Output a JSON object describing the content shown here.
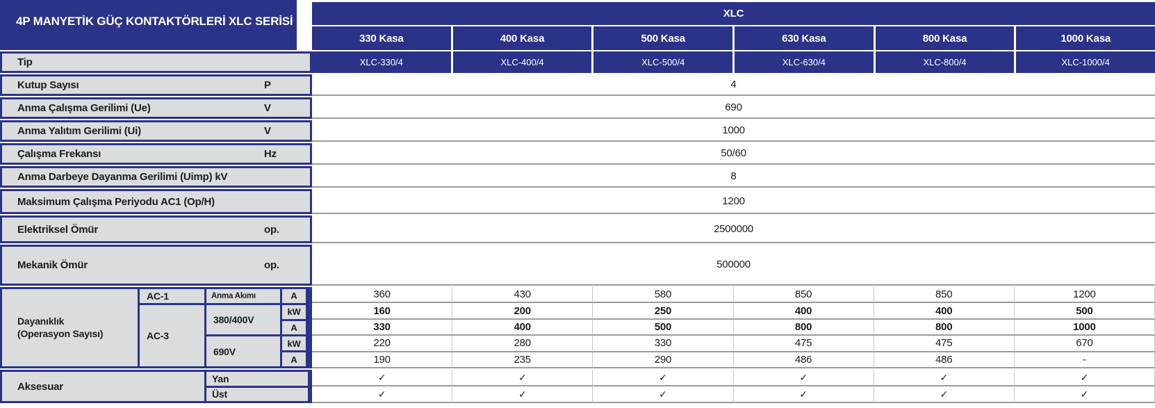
{
  "colors": {
    "brand_blue": "#2b3388",
    "label_gray": "#dbdcde",
    "row_line_gray": "#9b9b9b",
    "column_line_gray": "#c6c6c6",
    "text_dark": "#1c1c1f"
  },
  "title": "4P MANYETİK GÜÇ KONTAKTÖRLERİ XLC SERİSİ",
  "header": {
    "group": "XLC",
    "cases": [
      "330 Kasa",
      "400 Kasa",
      "500 Kasa",
      "630 Kasa",
      "800 Kasa",
      "1000 Kasa"
    ]
  },
  "tip": {
    "label": "Tip",
    "models": [
      "XLC-330/4",
      "XLC-400/4",
      "XLC-500/4",
      "XLC-630/4",
      "XLC-800/4",
      "XLC-1000/4"
    ]
  },
  "specs": [
    {
      "label": "Kutup Sayısı",
      "unit": "P",
      "value": "4"
    },
    {
      "label": "Anma Çalışma Gerilimi (Ue)",
      "unit": "V",
      "value": "690"
    },
    {
      "label": "Anma Yalıtım Gerilimi (Ui)",
      "unit": "V",
      "value": "1000"
    },
    {
      "label": "Çalışma Frekansı",
      "unit": "Hz",
      "value": "50/60"
    },
    {
      "label": "Anma Darbeye Dayanma Gerilimi (Uimp) kV",
      "unit": "",
      "value": "8"
    },
    {
      "label": "Maksimum Çalışma Periyodu AC1 (Op/H)",
      "unit": "",
      "value": "1200"
    },
    {
      "label": "Elektriksel Ömür",
      "unit": "op.",
      "value": "2500000"
    },
    {
      "label": "Mekanik Ömür",
      "unit": "op.",
      "value": "500000"
    }
  ],
  "durability": {
    "label": "Dayanıklık",
    "sublabel": "(Operasyon Sayısı)",
    "ac1": "AC-1",
    "ac3": "AC-3",
    "current_label": "Anma Akımı",
    "v380": "380/400V",
    "v690": "690V",
    "rows": [
      {
        "unit": "A",
        "values": [
          "360",
          "430",
          "580",
          "850",
          "850",
          "1200"
        ]
      },
      {
        "unit": "kW",
        "values": [
          "160",
          "200",
          "250",
          "400",
          "400",
          "500"
        ]
      },
      {
        "unit": "A",
        "values": [
          "330",
          "400",
          "500",
          "800",
          "800",
          "1000"
        ]
      },
      {
        "unit": "kW",
        "values": [
          "220",
          "280",
          "330",
          "475",
          "475",
          "670"
        ]
      },
      {
        "unit": "A",
        "values": [
          "190",
          "235",
          "290",
          "486",
          "486",
          "-"
        ]
      }
    ]
  },
  "accessories": {
    "label": "Aksesuar",
    "rows": [
      {
        "label": "Yan",
        "values": [
          "✓",
          "✓",
          "✓",
          "✓",
          "✓",
          "✓"
        ]
      },
      {
        "label": "Üst",
        "values": [
          "✓",
          "✓",
          "✓",
          "✓",
          "✓",
          "✓"
        ]
      }
    ]
  }
}
